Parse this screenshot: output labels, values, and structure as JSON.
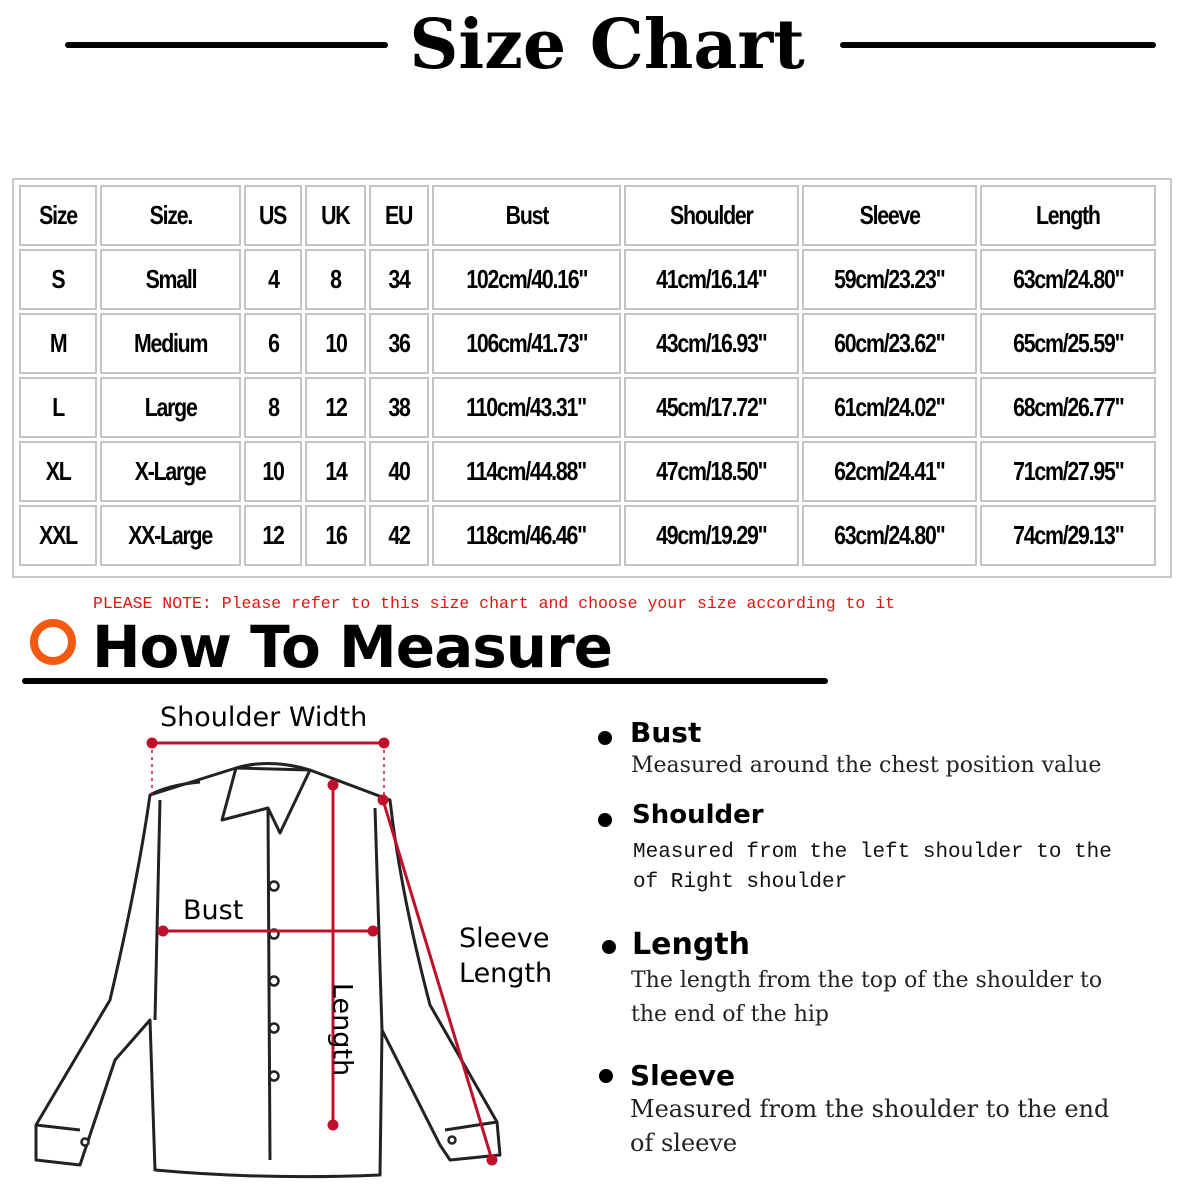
{
  "title": "Size Chart",
  "table": {
    "headers": [
      "Size",
      "Size.",
      "US",
      "UK",
      "EU",
      "Bust",
      "Shoulder",
      "Sleeve",
      "Length"
    ],
    "rows": [
      [
        "S",
        "Small",
        "4",
        "8",
        "34",
        "102cm/40.16\"",
        "41cm/16.14\"",
        "59cm/23.23\"",
        "63cm/24.80\""
      ],
      [
        "M",
        "Medium",
        "6",
        "10",
        "36",
        "106cm/41.73\"",
        "43cm/16.93\"",
        "60cm/23.62\"",
        "65cm/25.59\""
      ],
      [
        "L",
        "Large",
        "8",
        "12",
        "38",
        "110cm/43.31\"",
        "45cm/17.72\"",
        "61cm/24.02\"",
        "68cm/26.77\""
      ],
      [
        "XL",
        "X-Large",
        "10",
        "14",
        "40",
        "114cm/44.88\"",
        "47cm/18.50\"",
        "62cm/24.41\"",
        "71cm/27.95\""
      ],
      [
        "XXL",
        "XX-Large",
        "12",
        "16",
        "42",
        "118cm/46.46\"",
        "49cm/19.29\"",
        "63cm/24.80\"",
        "74cm/29.13\""
      ]
    ]
  },
  "note": "PLEASE NOTE: Please refer to this size chart and choose your size according to it",
  "how_to_measure": {
    "heading": "How To Measure",
    "diagram_labels": {
      "shoulder_width": "Shoulder Width",
      "bust": "Bust",
      "sleeve_line1": "Sleeve",
      "sleeve_line2": "Length",
      "length": "Length"
    },
    "items": [
      {
        "title": "Bust",
        "desc": [
          "Measured around the chest position value"
        ]
      },
      {
        "title": "Shoulder",
        "desc": [
          "Measured from the left shoulder to the",
          "of Right shoulder"
        ]
      },
      {
        "title": "Length",
        "desc": [
          "The length from the top of the shoulder to",
          "the end of the hip"
        ]
      },
      {
        "title": "Sleeve",
        "desc": [
          "Measured from the shoulder to the end",
          "of sleeve"
        ]
      }
    ]
  },
  "colors": {
    "accent": "#f25a12",
    "note": "#e0140f",
    "measure_line": "#c0102a"
  }
}
